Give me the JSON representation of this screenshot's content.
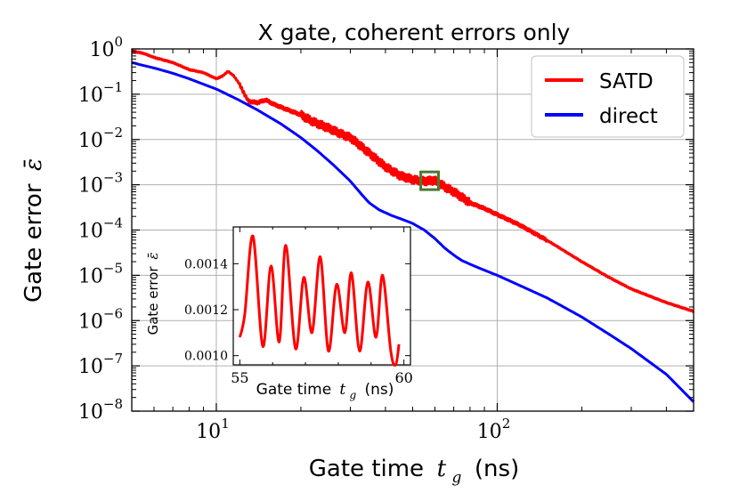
{
  "chart_data": [
    {
      "type": "line",
      "title": "X gate, coherent errors only",
      "xlabel_main": "Gate time",
      "xlabel_sym": "t",
      "xlabel_sub": "g",
      "xlabel_unit": "(ns)",
      "ylabel_main": "Gate error",
      "ylabel_sym": "ε̄",
      "xscale": "log",
      "yscale": "log",
      "xlim": [
        5,
        500
      ],
      "ylim": [
        1e-08,
        1
      ],
      "x_ticks": [
        {
          "value": 10,
          "base": "10",
          "exp": "1"
        },
        {
          "value": 100,
          "base": "10",
          "exp": "2"
        }
      ],
      "y_ticks": [
        {
          "value": 1,
          "base": "10",
          "exp": "0"
        },
        {
          "value": 0.1,
          "base": "10",
          "exp": "−1"
        },
        {
          "value": 0.01,
          "base": "10",
          "exp": "−2"
        },
        {
          "value": 0.001,
          "base": "10",
          "exp": "−3"
        },
        {
          "value": 0.0001,
          "base": "10",
          "exp": "−4"
        },
        {
          "value": 1e-05,
          "base": "10",
          "exp": "−5"
        },
        {
          "value": 1e-06,
          "base": "10",
          "exp": "−6"
        },
        {
          "value": 1e-07,
          "base": "10",
          "exp": "−7"
        },
        {
          "value": 1e-08,
          "base": "10",
          "exp": "−8"
        }
      ],
      "grid": true,
      "legend_position": "top-right",
      "series": [
        {
          "name": "SATD",
          "color": "#ff0000",
          "x": [
            5,
            5.5,
            6,
            7,
            8,
            9,
            10,
            10.5,
            11,
            11.5,
            12,
            12.5,
            13,
            14,
            15,
            16,
            18,
            20,
            22,
            25,
            28,
            30,
            32,
            35,
            40,
            45,
            50,
            55,
            60,
            65,
            70,
            80,
            90,
            100,
            120,
            150,
            200,
            250,
            300,
            400,
            500
          ],
          "y": [
            0.9,
            0.8,
            0.65,
            0.5,
            0.35,
            0.3,
            0.22,
            0.25,
            0.32,
            0.26,
            0.18,
            0.11,
            0.07,
            0.065,
            0.075,
            0.06,
            0.045,
            0.035,
            0.025,
            0.018,
            0.013,
            0.011,
            0.008,
            0.005,
            0.0025,
            0.0016,
            0.0013,
            0.0012,
            0.00125,
            0.0009,
            0.0007,
            0.0004,
            0.0003,
            0.00022,
            0.00013,
            6e-05,
            2e-05,
            9e-06,
            5e-06,
            2.5e-06,
            1.6e-06
          ]
        },
        {
          "name": "direct",
          "color": "#0000ff",
          "x": [
            5,
            6,
            7,
            8,
            10,
            12,
            14,
            17,
            20,
            23,
            26,
            30,
            33,
            35,
            38,
            42,
            45,
            50,
            55,
            60,
            65,
            70,
            75,
            85,
            100,
            120,
            150,
            200,
            250,
            300,
            400,
            500
          ],
          "y": [
            0.5,
            0.38,
            0.29,
            0.22,
            0.13,
            0.075,
            0.045,
            0.022,
            0.011,
            0.0055,
            0.0028,
            0.0012,
            0.0006,
            0.0004,
            0.00028,
            0.00021,
            0.00018,
            0.00014,
            0.0001,
            6.5e-05,
            4e-05,
            2.8e-05,
            2.1e-05,
            1.5e-05,
            1e-05,
            6e-06,
            3.2e-06,
            1.2e-06,
            5e-07,
            2.4e-07,
            6.5e-08,
            1.6e-08
          ]
        }
      ],
      "highlight_box": {
        "x_range": [
          55,
          60
        ],
        "color": "#4a7a30"
      }
    },
    {
      "type": "line",
      "title": "",
      "xlabel_main": "Gate time",
      "xlabel_sym": "t",
      "xlabel_sub": "g",
      "xlabel_unit": "(ns)",
      "ylabel_main": "Gate error",
      "ylabel_sym": "ε̄",
      "xlim": [
        54.8,
        60.2
      ],
      "ylim": [
        0.00096,
        0.00156
      ],
      "x_ticks": [
        {
          "value": 55,
          "label": "55"
        },
        {
          "value": 60,
          "label": "60"
        }
      ],
      "y_ticks": [
        {
          "value": 0.001,
          "label": "0.0010"
        },
        {
          "value": 0.0012,
          "label": "0.0012"
        },
        {
          "value": 0.0014,
          "label": "0.0014"
        }
      ],
      "series": [
        {
          "name": "SATD",
          "color": "#ff0000",
          "x": [
            55.0,
            55.15,
            55.4,
            55.7,
            55.95,
            56.2,
            56.4,
            56.7,
            56.95,
            57.2,
            57.45,
            57.7,
            57.95,
            58.2,
            58.4,
            58.65,
            58.9,
            59.15,
            59.35,
            59.6,
            59.75,
            59.85
          ],
          "y": [
            0.00108,
            0.00118,
            0.00152,
            0.00104,
            0.00139,
            0.00106,
            0.00148,
            0.00103,
            0.00134,
            0.0011,
            0.00143,
            0.00102,
            0.00131,
            0.0011,
            0.00136,
            0.00102,
            0.00132,
            0.00108,
            0.00135,
            0.00102,
            0.00096,
            0.00105
          ]
        }
      ]
    }
  ]
}
